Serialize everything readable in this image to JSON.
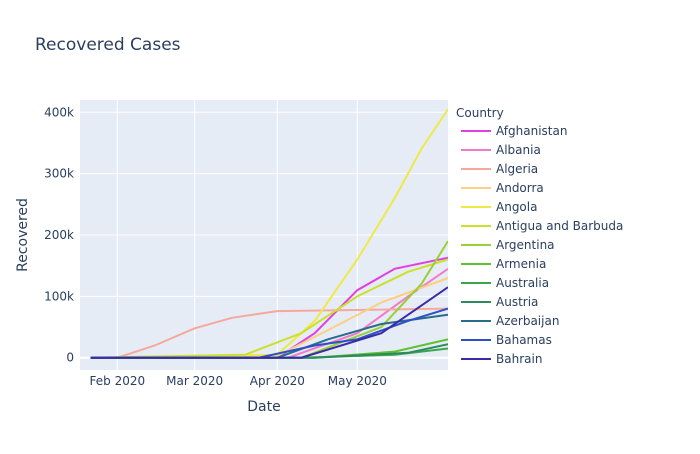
{
  "chart_data": {
    "type": "line",
    "title": "Recovered Cases",
    "xlabel": "Date",
    "ylabel": "Recovered",
    "x_range": [
      "2020-01-18",
      "2020-06-04"
    ],
    "y_range": [
      -20000,
      420000
    ],
    "x_ticks": [
      {
        "date": "2020-02-01",
        "label": "Feb 2020"
      },
      {
        "date": "2020-03-01",
        "label": "Mar 2020"
      },
      {
        "date": "2020-04-01",
        "label": "Apr 2020"
      },
      {
        "date": "2020-05-01",
        "label": "May 2020"
      }
    ],
    "y_ticks": [
      {
        "value": 0,
        "label": "0"
      },
      {
        "value": 100000,
        "label": "100k"
      },
      {
        "value": 200000,
        "label": "200k"
      },
      {
        "value": 300000,
        "label": "300k"
      },
      {
        "value": 400000,
        "label": "400k"
      }
    ],
    "grid": true,
    "legend_title": "Country",
    "legend_position": "right",
    "series": [
      {
        "name": "Afghanistan",
        "color": "#e040e0",
        "points": [
          [
            "2020-01-22",
            0
          ],
          [
            "2020-04-01",
            0
          ],
          [
            "2020-04-15",
            40000
          ],
          [
            "2020-05-01",
            110000
          ],
          [
            "2020-05-15",
            145000
          ],
          [
            "2020-06-04",
            163000
          ]
        ]
      },
      {
        "name": "Albania",
        "color": "#f27ac8",
        "points": [
          [
            "2020-01-22",
            0
          ],
          [
            "2020-04-05",
            0
          ],
          [
            "2020-05-01",
            40000
          ],
          [
            "2020-05-20",
            100000
          ],
          [
            "2020-06-04",
            145000
          ]
        ]
      },
      {
        "name": "Algeria",
        "color": "#f7a89c",
        "points": [
          [
            "2020-01-22",
            0
          ],
          [
            "2020-02-01",
            0
          ],
          [
            "2020-02-15",
            20000
          ],
          [
            "2020-03-01",
            48000
          ],
          [
            "2020-03-15",
            65000
          ],
          [
            "2020-04-01",
            76000
          ],
          [
            "2020-06-04",
            80000
          ]
        ]
      },
      {
        "name": "Andorra",
        "color": "#fbcf84",
        "points": [
          [
            "2020-01-22",
            0
          ],
          [
            "2020-04-01",
            3000
          ],
          [
            "2020-04-20",
            45000
          ],
          [
            "2020-05-10",
            90000
          ],
          [
            "2020-06-04",
            130000
          ]
        ]
      },
      {
        "name": "Angola",
        "color": "#f0e847",
        "points": [
          [
            "2020-01-22",
            0
          ],
          [
            "2020-04-01",
            5000
          ],
          [
            "2020-04-15",
            60000
          ],
          [
            "2020-05-01",
            160000
          ],
          [
            "2020-05-15",
            260000
          ],
          [
            "2020-05-25",
            340000
          ],
          [
            "2020-06-04",
            405000
          ]
        ]
      },
      {
        "name": "Antigua and Barbuda",
        "color": "#ccdf2a",
        "points": [
          [
            "2020-01-22",
            0
          ],
          [
            "2020-03-20",
            5000
          ],
          [
            "2020-04-10",
            40000
          ],
          [
            "2020-05-01",
            100000
          ],
          [
            "2020-05-20",
            140000
          ],
          [
            "2020-06-04",
            160000
          ]
        ]
      },
      {
        "name": "Argentina",
        "color": "#9ad033",
        "points": [
          [
            "2020-01-22",
            0
          ],
          [
            "2020-04-10",
            0
          ],
          [
            "2020-05-10",
            50000
          ],
          [
            "2020-05-25",
            120000
          ],
          [
            "2020-06-04",
            190000
          ]
        ]
      },
      {
        "name": "Armenia",
        "color": "#5ec22e",
        "points": [
          [
            "2020-01-22",
            0
          ],
          [
            "2020-04-15",
            0
          ],
          [
            "2020-05-15",
            10000
          ],
          [
            "2020-06-04",
            30000
          ]
        ]
      },
      {
        "name": "Australia",
        "color": "#3aa84a",
        "points": [
          [
            "2020-01-22",
            0
          ],
          [
            "2020-04-10",
            0
          ],
          [
            "2020-05-15",
            5000
          ],
          [
            "2020-06-04",
            15000
          ]
        ]
      },
      {
        "name": "Austria",
        "color": "#2e8a5e",
        "points": [
          [
            "2020-01-22",
            0
          ],
          [
            "2020-04-15",
            0
          ],
          [
            "2020-05-20",
            8000
          ],
          [
            "2020-06-04",
            22000
          ]
        ]
      },
      {
        "name": "Azerbaijan",
        "color": "#2a6c8c",
        "points": [
          [
            "2020-01-22",
            0
          ],
          [
            "2020-04-01",
            0
          ],
          [
            "2020-04-20",
            30000
          ],
          [
            "2020-05-10",
            55000
          ],
          [
            "2020-06-04",
            70000
          ]
        ]
      },
      {
        "name": "Bahamas",
        "color": "#2d50c8",
        "points": [
          [
            "2020-01-22",
            0
          ],
          [
            "2020-03-25",
            0
          ],
          [
            "2020-04-15",
            20000
          ],
          [
            "2020-05-01",
            30000
          ],
          [
            "2020-05-20",
            60000
          ],
          [
            "2020-06-04",
            80000
          ]
        ]
      },
      {
        "name": "Bahrain",
        "color": "#3a2aa8",
        "points": [
          [
            "2020-01-22",
            0
          ],
          [
            "2020-04-10",
            0
          ],
          [
            "2020-05-10",
            40000
          ],
          [
            "2020-06-04",
            115000
          ]
        ]
      }
    ]
  }
}
